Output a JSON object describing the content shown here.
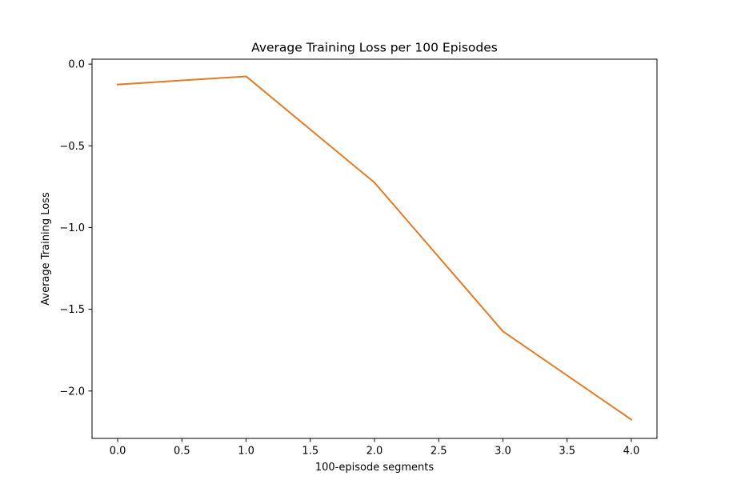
{
  "chart_data": {
    "type": "line",
    "title": "Average Training Loss per 100 Episodes",
    "xlabel": "100-episode segments",
    "ylabel": "Average Training Loss",
    "xlim": [
      -0.2,
      4.2
    ],
    "ylim": [
      -2.29,
      0.03
    ],
    "xticks": [
      0.0,
      0.5,
      1.0,
      1.5,
      2.0,
      2.5,
      3.0,
      3.5,
      4.0
    ],
    "xtick_labels": [
      "0.0",
      "0.5",
      "1.0",
      "1.5",
      "2.0",
      "2.5",
      "3.0",
      "3.5",
      "4.0"
    ],
    "yticks": [
      0.0,
      -0.5,
      -1.0,
      -1.5,
      -2.0
    ],
    "ytick_labels": [
      "0.0",
      "−0.5",
      "−1.0",
      "−1.5",
      "−2.0"
    ],
    "grid": false,
    "x": [
      0,
      1,
      2,
      3,
      4
    ],
    "series": [
      {
        "values": [
          -0.125,
          -0.075,
          -0.725,
          -1.635,
          -2.175
        ],
        "color": "#e07b28"
      }
    ]
  }
}
